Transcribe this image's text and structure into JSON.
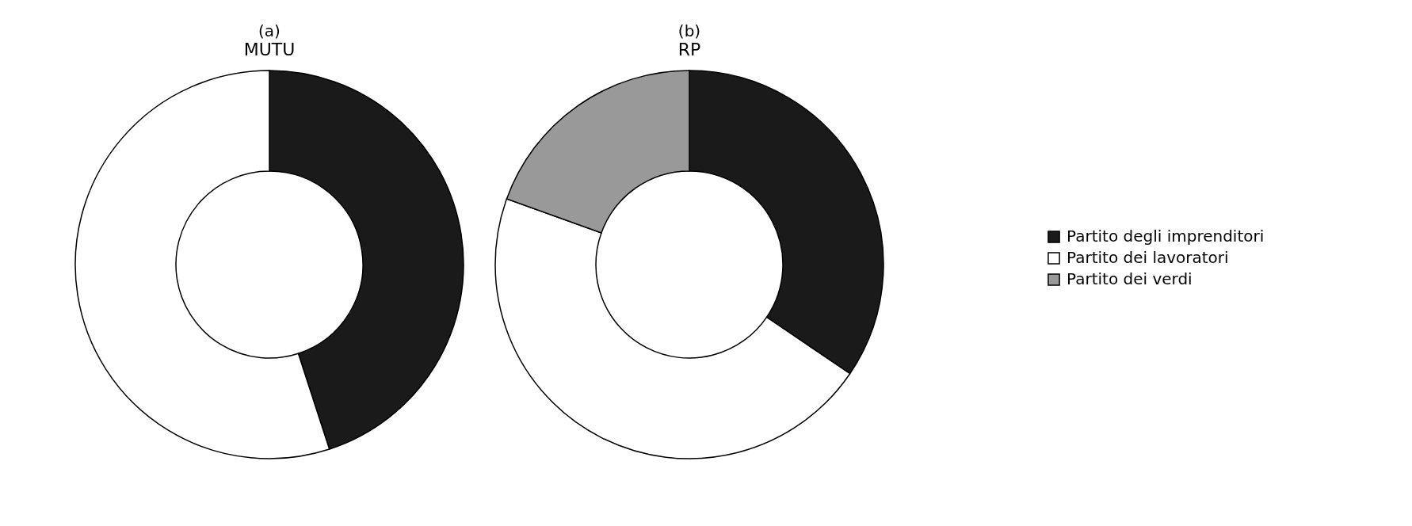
{
  "chart_data": [
    {
      "type": "donut",
      "title": "(a)",
      "subtitle": "MUTU",
      "categories": [
        null,
        null
      ],
      "values": [
        45,
        55
      ],
      "colors": [
        "#1a1a1a",
        "#ffffff"
      ],
      "legend": false
    },
    {
      "type": "donut",
      "title": "(b)",
      "subtitle": "RP",
      "categories": [
        "Partito degli imprenditori",
        "Partito dei lavoratori",
        "Partito dei verdi"
      ],
      "values": [
        34.5,
        46,
        19.5
      ],
      "colors": [
        "#1a1a1a",
        "#ffffff",
        "#999999"
      ],
      "legend": "right"
    }
  ]
}
